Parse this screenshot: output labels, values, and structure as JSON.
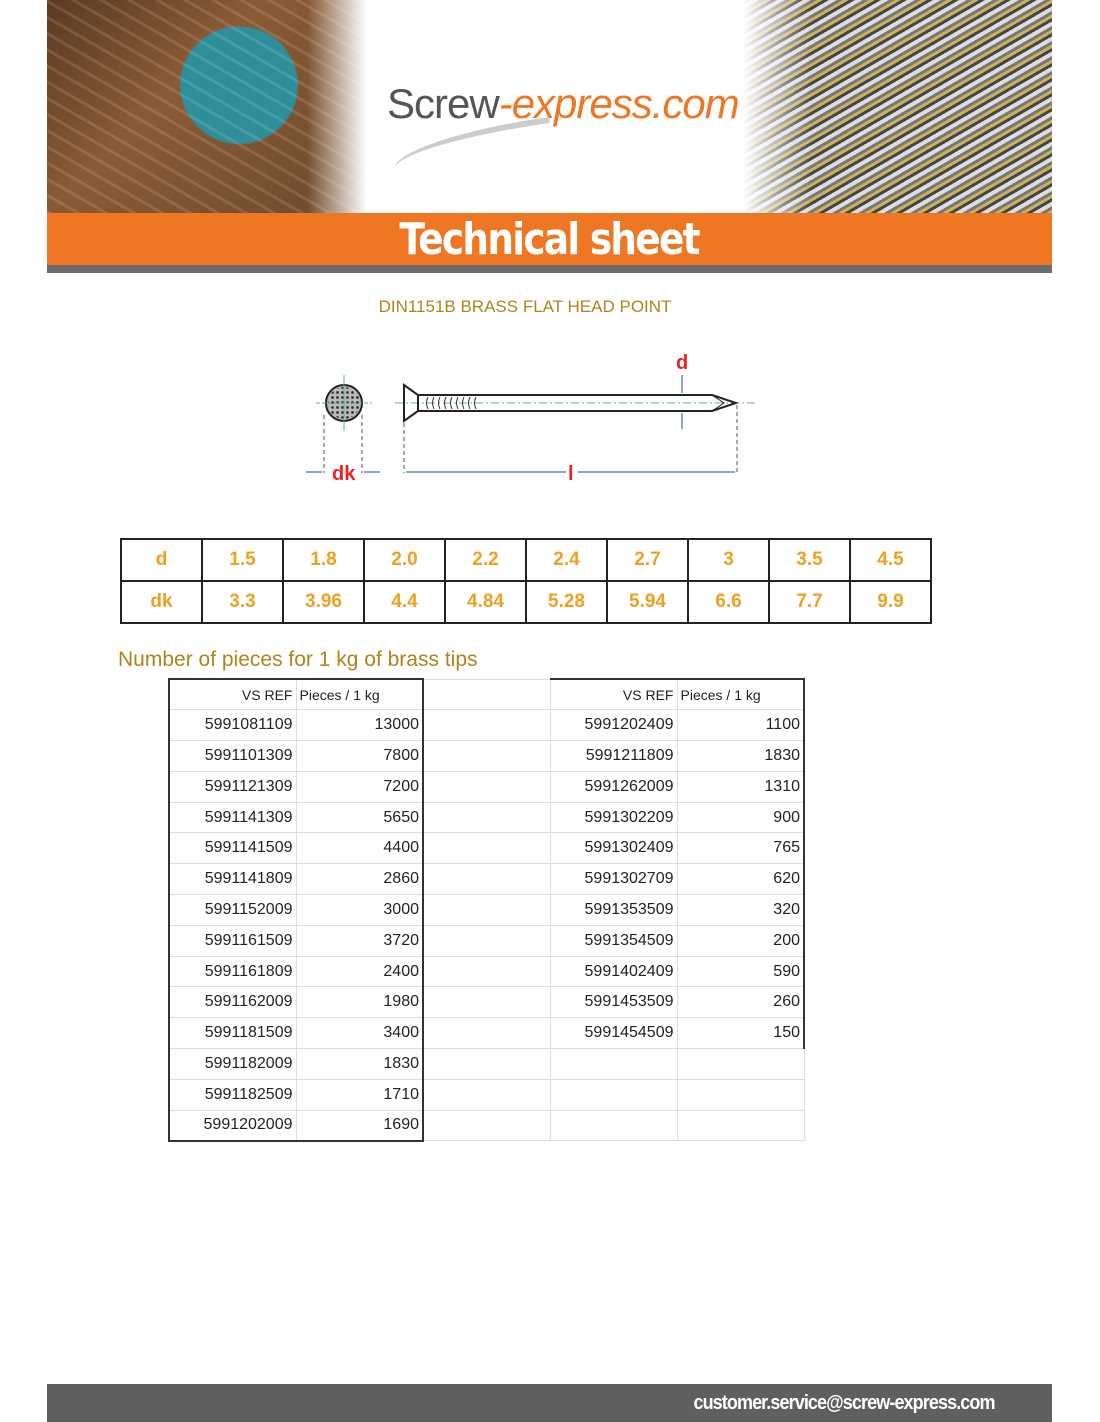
{
  "header": {
    "logo_main": "Screw",
    "logo_accent": "-express.com",
    "banner_title": "Technical sheet"
  },
  "product_title": "DIN1151B BRASS FLAT HEAD POINT",
  "diagram_labels": {
    "d": "d",
    "dk": "dk",
    "l": "l"
  },
  "dimensions": {
    "rows": [
      {
        "label": "d",
        "values": [
          "1.5",
          "1.8",
          "2.0",
          "2.2",
          "2.4",
          "2.7",
          "3",
          "3.5",
          "4.5"
        ]
      },
      {
        "label": "dk",
        "values": [
          "3.3",
          "3.96",
          "4.4",
          "4.84",
          "5.28",
          "5.94",
          "6.6",
          "7.7",
          "9.9"
        ]
      }
    ]
  },
  "pieces": {
    "subtitle": "Number of pieces for 1 kg of brass tips",
    "headers": [
      "VS REF",
      "Pieces / 1 kg"
    ],
    "left": [
      [
        "5991081109",
        "13000"
      ],
      [
        "5991101309",
        "7800"
      ],
      [
        "5991121309",
        "7200"
      ],
      [
        "5991141309",
        "5650"
      ],
      [
        "5991141509",
        "4400"
      ],
      [
        "5991141809",
        "2860"
      ],
      [
        "5991152009",
        "3000"
      ],
      [
        "5991161509",
        "3720"
      ],
      [
        "5991161809",
        "2400"
      ],
      [
        "5991162009",
        "1980"
      ],
      [
        "5991181509",
        "3400"
      ],
      [
        "5991182009",
        "1830"
      ],
      [
        "5991182509",
        "1710"
      ],
      [
        "5991202009",
        "1690"
      ]
    ],
    "right": [
      [
        "5991202409",
        "1100"
      ],
      [
        "5991211809",
        "1830"
      ],
      [
        "5991262009",
        "1310"
      ],
      [
        "5991302209",
        "900"
      ],
      [
        "5991302409",
        "765"
      ],
      [
        "5991302709",
        "620"
      ],
      [
        "5991353509",
        "320"
      ],
      [
        "5991354509",
        "200"
      ],
      [
        "5991402409",
        "590"
      ],
      [
        "5991453509",
        "260"
      ],
      [
        "5991454509",
        "150"
      ]
    ]
  },
  "footer": {
    "email": "customer.service@screw-express.com"
  },
  "colors": {
    "orange": "#ef7622",
    "gold": "#b0841c",
    "value_orange": "#f0a020",
    "footer_gray": "#5f5f5f"
  }
}
